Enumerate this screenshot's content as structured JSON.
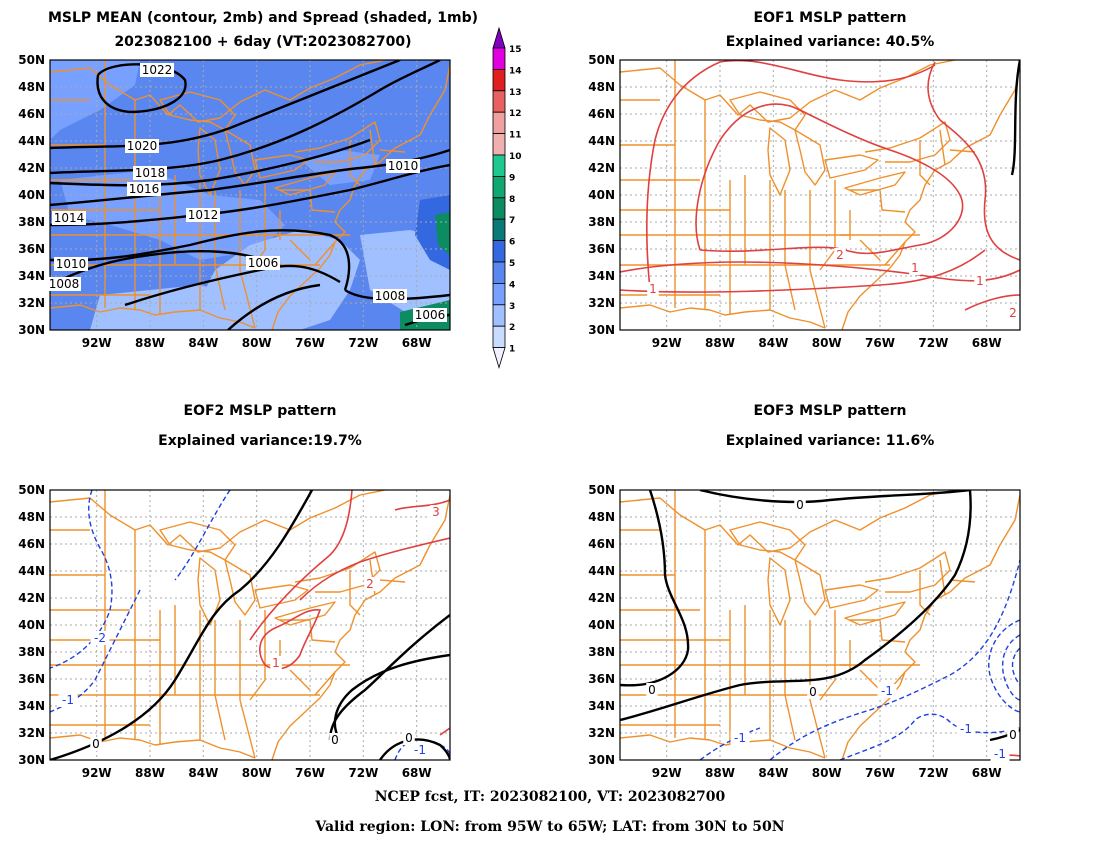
{
  "panels": [
    {
      "id": "mean",
      "title_line1": "MSLP MEAN (contour, 2mb) and Spread (shaded, 1mb)",
      "title_line2": "2023082100 + 6day (VT:2023082700)",
      "contour_labels": [
        "1022",
        "1020",
        "1018",
        "1016",
        "1014",
        "1012",
        "1010",
        "1010",
        "1008",
        "1006",
        "1008",
        "1006"
      ]
    },
    {
      "id": "eof1",
      "title_line1": "EOF1 MSLP pattern",
      "title_line2": "Explained variance: 40.5%",
      "contour_labels": [
        "1",
        "2",
        "1",
        "1",
        "2"
      ]
    },
    {
      "id": "eof2",
      "title_line1": "EOF2 MSLP pattern",
      "title_line2": "Explained variance:19.7%",
      "contour_labels": [
        "-2",
        "-1",
        "0",
        "1",
        "2",
        "3",
        "0",
        "0",
        "-1"
      ]
    },
    {
      "id": "eof3",
      "title_line1": "EOF3 MSLP pattern",
      "title_line2": "Explained variance: 11.6%",
      "contour_labels": [
        "0",
        "0",
        "0",
        "-1",
        "-1",
        "-1",
        "0",
        "-1"
      ]
    }
  ],
  "lat_labels": [
    "50N",
    "48N",
    "46N",
    "44N",
    "42N",
    "40N",
    "38N",
    "36N",
    "34N",
    "32N",
    "30N"
  ],
  "lon_labels": [
    "92W",
    "88W",
    "84W",
    "80W",
    "76W",
    "72W",
    "68W"
  ],
  "colorbar": {
    "levels": [
      "1",
      "2",
      "3",
      "4",
      "5",
      "6",
      "7",
      "8",
      "9",
      "10",
      "11",
      "12",
      "13",
      "14",
      "15"
    ],
    "colors": [
      "#c8dcff",
      "#a0c0ff",
      "#78a0ff",
      "#5a86f0",
      "#3468e0",
      "#0a7a78",
      "#0c8c60",
      "#10a870",
      "#20c890",
      "#f0b0b0",
      "#f0a0a0",
      "#e86060",
      "#e02020",
      "#e000e0",
      "#8000c0"
    ]
  },
  "footer": {
    "line1": "NCEP fcst, IT: 2023082100, VT: 2023082700",
    "line2": "Valid region: LON: from 95W to 65W; LAT: from 30N to 50N"
  },
  "colors": {
    "coast": "#f0902a",
    "positive": "#e04040",
    "negative": "#2040e0",
    "contour": "#000000",
    "grid": "#aaaaaa"
  }
}
